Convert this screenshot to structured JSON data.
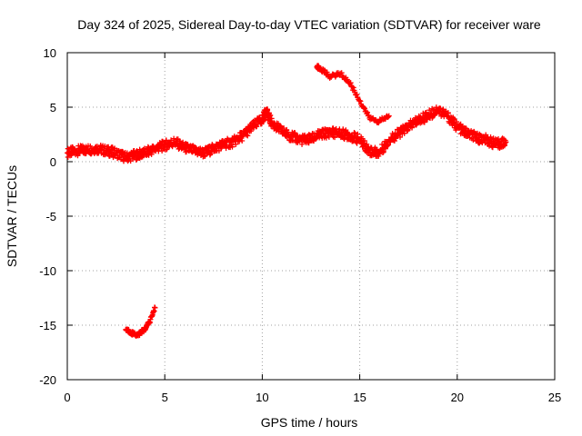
{
  "chart_data": {
    "type": "scatter",
    "title": "Day 324 of 2025, Sidereal Day-to-day VTEC variation (SDTVAR) for receiver ware",
    "xlabel": "GPS time / hours",
    "ylabel": "SDTVAR / TECUs",
    "xlim": [
      0,
      25
    ],
    "ylim": [
      -20,
      10
    ],
    "xticks": [
      0,
      5,
      10,
      15,
      20,
      25
    ],
    "yticks": [
      -20,
      -15,
      -10,
      -5,
      0,
      5,
      10
    ],
    "xtick_labels": [
      "0",
      "5",
      "10",
      "15",
      "20",
      "25"
    ],
    "ytick_labels": [
      "-20",
      "-15",
      "-10",
      "-5",
      "0",
      "5",
      "10"
    ],
    "grid": true,
    "marker": "+",
    "color": "#ff0000",
    "series": [
      {
        "name": "main-band",
        "points": [
          [
            0,
            0.8
          ],
          [
            0.5,
            1.0
          ],
          [
            1.0,
            1.1
          ],
          [
            1.5,
            1.2
          ],
          [
            2.0,
            1.0
          ],
          [
            2.5,
            0.8
          ],
          [
            3.0,
            0.4
          ],
          [
            3.5,
            0.6
          ],
          [
            4.0,
            0.8
          ],
          [
            4.5,
            1.2
          ],
          [
            5.0,
            1.5
          ],
          [
            5.5,
            1.8
          ],
          [
            6.0,
            1.3
          ],
          [
            6.5,
            1.0
          ],
          [
            7.0,
            0.8
          ],
          [
            7.5,
            1.2
          ],
          [
            8.0,
            1.6
          ],
          [
            8.5,
            1.8
          ],
          [
            9.0,
            2.4
          ],
          [
            9.5,
            3.2
          ],
          [
            10.0,
            3.9
          ],
          [
            10.2,
            4.6
          ],
          [
            10.5,
            3.5
          ],
          [
            11.0,
            2.8
          ],
          [
            11.5,
            2.3
          ],
          [
            12.0,
            2.0
          ],
          [
            12.5,
            2.1
          ],
          [
            13.0,
            2.5
          ],
          [
            13.5,
            2.7
          ],
          [
            14.0,
            2.6
          ],
          [
            14.5,
            2.4
          ],
          [
            15.0,
            2.0
          ],
          [
            15.5,
            1.0
          ],
          [
            16.0,
            0.8
          ],
          [
            16.5,
            2.0
          ],
          [
            17.0,
            2.6
          ],
          [
            17.5,
            3.2
          ],
          [
            18.0,
            3.8
          ],
          [
            18.5,
            4.2
          ],
          [
            19.0,
            4.8
          ],
          [
            19.5,
            4.2
          ],
          [
            20.0,
            3.2
          ],
          [
            20.5,
            2.6
          ],
          [
            21.0,
            2.2
          ],
          [
            21.5,
            2.0
          ],
          [
            22.0,
            1.6
          ],
          [
            22.5,
            1.8
          ]
        ]
      },
      {
        "name": "upper-arc",
        "points": [
          [
            12.8,
            8.7
          ],
          [
            13.0,
            8.5
          ],
          [
            13.5,
            7.8
          ],
          [
            14.0,
            8.1
          ],
          [
            14.5,
            7.2
          ],
          [
            15.0,
            5.6
          ],
          [
            15.5,
            4.0
          ],
          [
            16.0,
            3.7
          ],
          [
            16.5,
            4.2
          ]
        ]
      },
      {
        "name": "low-segment",
        "points": [
          [
            3.0,
            -15.4
          ],
          [
            3.3,
            -15.7
          ],
          [
            3.6,
            -15.9
          ],
          [
            3.9,
            -15.5
          ],
          [
            4.2,
            -14.8
          ],
          [
            4.5,
            -13.4
          ]
        ]
      }
    ]
  }
}
